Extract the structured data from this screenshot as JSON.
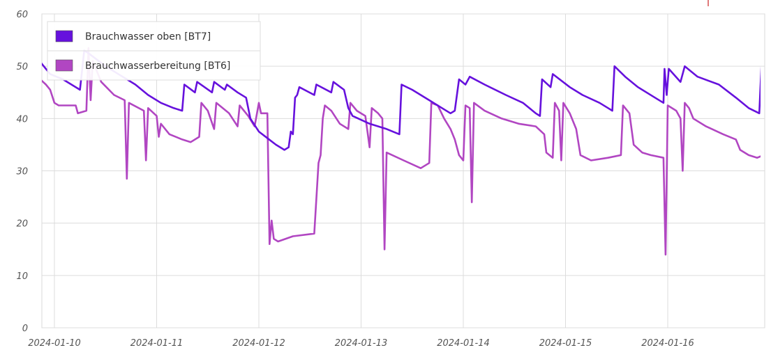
{
  "chart_data": {
    "type": "line",
    "x_type": "datetime",
    "xlim": [
      "2024-01-09 20:00",
      "2024-01-16 23:00"
    ],
    "ylim": [
      0,
      60
    ],
    "y_ticks": [
      0,
      10,
      20,
      30,
      40,
      50,
      60
    ],
    "x_tick_labels": [
      "2024-01-10",
      "2024-01-11",
      "2024-01-12",
      "2024-01-13",
      "2024-01-14",
      "2024-01-15",
      "2024-01-16"
    ],
    "grid": true,
    "legend_position": "top-left",
    "series": [
      {
        "name": "Brauchwasser oben [BT7]",
        "color": "#6611dd",
        "points": [
          [
            "2024-01-09 20:00",
            51.5
          ],
          [
            "2024-01-09 21:00",
            50.5
          ],
          [
            "2024-01-09 22:00",
            49.5
          ],
          [
            "2024-01-09 23:00",
            48.5
          ],
          [
            "2024-01-10 02:00",
            47.5
          ],
          [
            "2024-01-10 04:00",
            46.5
          ],
          [
            "2024-01-10 06:00",
            45.5
          ],
          [
            "2024-01-10 07:00",
            53.0
          ],
          [
            "2024-01-10 08:00",
            52.5
          ],
          [
            "2024-01-10 12:00",
            50.0
          ],
          [
            "2024-01-10 16:00",
            48.0
          ],
          [
            "2024-01-10 19:00",
            46.5
          ],
          [
            "2024-01-10 22:00",
            44.5
          ],
          [
            "2024-01-11 01:00",
            43.0
          ],
          [
            "2024-01-11 04:00",
            42.0
          ],
          [
            "2024-01-11 06:00",
            41.5
          ],
          [
            "2024-01-11 06:30",
            46.5
          ],
          [
            "2024-01-11 09:00",
            45.0
          ],
          [
            "2024-01-11 09:30",
            47.0
          ],
          [
            "2024-01-11 13:00",
            45.0
          ],
          [
            "2024-01-11 13:30",
            47.0
          ],
          [
            "2024-01-11 16:00",
            45.5
          ],
          [
            "2024-01-11 16:30",
            46.5
          ],
          [
            "2024-01-11 19:00",
            45.0
          ],
          [
            "2024-01-11 21:00",
            44.0
          ],
          [
            "2024-01-11 22:00",
            40.0
          ],
          [
            "2024-01-12 00:00",
            37.5
          ],
          [
            "2024-01-12 04:00",
            35.0
          ],
          [
            "2024-01-12 06:00",
            34.0
          ],
          [
            "2024-01-12 07:00",
            34.5
          ],
          [
            "2024-01-12 07:30",
            37.5
          ],
          [
            "2024-01-12 08:00",
            37.0
          ],
          [
            "2024-01-12 08:30",
            44.0
          ],
          [
            "2024-01-12 09:00",
            44.5
          ],
          [
            "2024-01-12 09:30",
            46.0
          ],
          [
            "2024-01-12 13:00",
            44.5
          ],
          [
            "2024-01-12 13:30",
            46.5
          ],
          [
            "2024-01-12 17:00",
            45.0
          ],
          [
            "2024-01-12 17:30",
            47.0
          ],
          [
            "2024-01-12 20:00",
            45.5
          ],
          [
            "2024-01-12 21:00",
            42.0
          ],
          [
            "2024-01-12 22:00",
            40.5
          ],
          [
            "2024-01-13 02:00",
            39.0
          ],
          [
            "2024-01-13 06:00",
            38.0
          ],
          [
            "2024-01-13 09:00",
            37.0
          ],
          [
            "2024-01-13 09:30",
            46.5
          ],
          [
            "2024-01-13 12:00",
            45.5
          ],
          [
            "2024-01-13 16:00",
            43.5
          ],
          [
            "2024-01-13 19:00",
            42.0
          ],
          [
            "2024-01-13 21:00",
            41.0
          ],
          [
            "2024-01-13 22:00",
            41.5
          ],
          [
            "2024-01-13 23:00",
            47.5
          ],
          [
            "2024-01-14 00:30",
            46.5
          ],
          [
            "2024-01-14 01:30",
            48.0
          ],
          [
            "2024-01-14 05:00",
            46.5
          ],
          [
            "2024-01-14 10:00",
            44.5
          ],
          [
            "2024-01-14 14:00",
            43.0
          ],
          [
            "2024-01-14 17:00",
            41.0
          ],
          [
            "2024-01-14 18:00",
            40.5
          ],
          [
            "2024-01-14 18:30",
            47.5
          ],
          [
            "2024-01-14 20:30",
            46.0
          ],
          [
            "2024-01-14 21:00",
            48.5
          ],
          [
            "2024-01-15 01:00",
            46.0
          ],
          [
            "2024-01-15 04:00",
            44.5
          ],
          [
            "2024-01-15 08:00",
            43.0
          ],
          [
            "2024-01-15 10:00",
            42.0
          ],
          [
            "2024-01-15 11:00",
            41.5
          ],
          [
            "2024-01-15 11:30",
            50.0
          ],
          [
            "2024-01-15 14:00",
            48.0
          ],
          [
            "2024-01-15 17:00",
            46.0
          ],
          [
            "2024-01-15 21:00",
            44.0
          ],
          [
            "2024-01-15 23:00",
            43.0
          ],
          [
            "2024-01-15 23:15",
            49.5
          ],
          [
            "2024-01-15 23:45",
            44.5
          ],
          [
            "2024-01-16 00:15",
            49.5
          ],
          [
            "2024-01-16 03:00",
            47.0
          ],
          [
            "2024-01-16 04:00",
            50.0
          ],
          [
            "2024-01-16 07:00",
            48.0
          ],
          [
            "2024-01-16 12:00",
            46.5
          ],
          [
            "2024-01-16 16:00",
            44.0
          ],
          [
            "2024-01-16 19:00",
            42.0
          ],
          [
            "2024-01-16 21:30",
            41.0
          ],
          [
            "2024-01-16 22:00",
            50.0
          ],
          [
            "2024-01-17 00:00",
            48.0
          ],
          [
            "2024-01-17 03:30",
            45.5
          ],
          [
            "2024-01-17 04:00",
            48.0
          ],
          [
            "2024-01-17 05:00",
            47.5
          ]
        ]
      },
      {
        "name": "Brauchwasserbereitung [BT6]",
        "color": "#b146c2",
        "points": [
          [
            "2024-01-09 20:00",
            48.0
          ],
          [
            "2024-01-09 22:00",
            46.5
          ],
          [
            "2024-01-09 23:00",
            45.5
          ],
          [
            "2024-01-10 00:00",
            43.0
          ],
          [
            "2024-01-10 01:00",
            42.5
          ],
          [
            "2024-01-10 05:00",
            42.5
          ],
          [
            "2024-01-10 05:30",
            41.0
          ],
          [
            "2024-01-10 07:30",
            41.5
          ],
          [
            "2024-01-10 08:00",
            53.5
          ],
          [
            "2024-01-10 08:30",
            43.5
          ],
          [
            "2024-01-10 09:00",
            51.0
          ],
          [
            "2024-01-10 11:00",
            47.0
          ],
          [
            "2024-01-10 14:00",
            44.5
          ],
          [
            "2024-01-10 16:30",
            43.5
          ],
          [
            "2024-01-10 17:00",
            28.5
          ],
          [
            "2024-01-10 17:30",
            43.0
          ],
          [
            "2024-01-10 21:00",
            41.5
          ],
          [
            "2024-01-10 21:30",
            32.0
          ],
          [
            "2024-01-10 22:00",
            42.0
          ],
          [
            "2024-01-11 00:00",
            40.5
          ],
          [
            "2024-01-11 00:30",
            36.5
          ],
          [
            "2024-01-11 01:00",
            39.0
          ],
          [
            "2024-01-11 03:00",
            37.0
          ],
          [
            "2024-01-11 06:00",
            36.0
          ],
          [
            "2024-01-11 08:00",
            35.5
          ],
          [
            "2024-01-11 10:00",
            36.5
          ],
          [
            "2024-01-11 10:30",
            43.0
          ],
          [
            "2024-01-11 12:00",
            41.5
          ],
          [
            "2024-01-11 13:30",
            38.0
          ],
          [
            "2024-01-11 14:00",
            43.0
          ],
          [
            "2024-01-11 17:00",
            41.0
          ],
          [
            "2024-01-11 19:00",
            38.5
          ],
          [
            "2024-01-11 19:30",
            42.5
          ],
          [
            "2024-01-11 21:30",
            40.5
          ],
          [
            "2024-01-11 23:00",
            38.5
          ],
          [
            "2024-01-12 00:00",
            43.0
          ],
          [
            "2024-01-12 00:30",
            41.0
          ],
          [
            "2024-01-12 02:00",
            41.0
          ],
          [
            "2024-01-12 02:30",
            16.0
          ],
          [
            "2024-01-12 03:00",
            20.5
          ],
          [
            "2024-01-12 03:30",
            17.0
          ],
          [
            "2024-01-12 04:30",
            16.5
          ],
          [
            "2024-01-12 08:00",
            17.5
          ],
          [
            "2024-01-12 13:00",
            18.0
          ],
          [
            "2024-01-12 14:00",
            31.5
          ],
          [
            "2024-01-12 14:30",
            33.0
          ],
          [
            "2024-01-12 15:00",
            40.0
          ],
          [
            "2024-01-12 15:30",
            42.5
          ],
          [
            "2024-01-12 17:00",
            41.5
          ],
          [
            "2024-01-12 19:00",
            39.0
          ],
          [
            "2024-01-12 21:00",
            38.0
          ],
          [
            "2024-01-12 21:30",
            43.0
          ],
          [
            "2024-01-12 23:00",
            41.5
          ],
          [
            "2024-01-13 01:00",
            40.5
          ],
          [
            "2024-01-13 02:00",
            34.5
          ],
          [
            "2024-01-13 02:30",
            42.0
          ],
          [
            "2024-01-13 04:00",
            41.0
          ],
          [
            "2024-01-13 05:00",
            40.0
          ],
          [
            "2024-01-13 05:30",
            15.0
          ],
          [
            "2024-01-13 06:00",
            33.5
          ],
          [
            "2024-01-13 10:00",
            32.0
          ],
          [
            "2024-01-13 14:00",
            30.5
          ],
          [
            "2024-01-13 16:00",
            31.5
          ],
          [
            "2024-01-13 16:30",
            43.0
          ],
          [
            "2024-01-13 18:00",
            42.5
          ],
          [
            "2024-01-13 19:30",
            40.0
          ],
          [
            "2024-01-13 21:00",
            38.0
          ],
          [
            "2024-01-13 22:00",
            36.0
          ],
          [
            "2024-01-13 23:00",
            33.0
          ],
          [
            "2024-01-14 00:00",
            32.0
          ],
          [
            "2024-01-14 00:30",
            42.5
          ],
          [
            "2024-01-14 01:30",
            42.0
          ],
          [
            "2024-01-14 02:00",
            24.0
          ],
          [
            "2024-01-14 02:30",
            43.0
          ],
          [
            "2024-01-14 05:00",
            41.5
          ],
          [
            "2024-01-14 09:00",
            40.0
          ],
          [
            "2024-01-14 13:00",
            39.0
          ],
          [
            "2024-01-14 17:00",
            38.5
          ],
          [
            "2024-01-14 19:00",
            37.0
          ],
          [
            "2024-01-14 19:30",
            33.5
          ],
          [
            "2024-01-14 21:00",
            32.5
          ],
          [
            "2024-01-14 21:30",
            43.0
          ],
          [
            "2024-01-14 22:30",
            41.5
          ],
          [
            "2024-01-14 23:00",
            32.0
          ],
          [
            "2024-01-14 23:30",
            43.0
          ],
          [
            "2024-01-15 01:00",
            41.0
          ],
          [
            "2024-01-15 02:30",
            38.0
          ],
          [
            "2024-01-15 03:30",
            33.0
          ],
          [
            "2024-01-15 06:00",
            32.0
          ],
          [
            "2024-01-15 10:00",
            32.5
          ],
          [
            "2024-01-15 13:00",
            33.0
          ],
          [
            "2024-01-15 13:30",
            42.5
          ],
          [
            "2024-01-15 15:00",
            41.0
          ],
          [
            "2024-01-15 16:00",
            35.0
          ],
          [
            "2024-01-15 18:00",
            33.5
          ],
          [
            "2024-01-15 20:00",
            33.0
          ],
          [
            "2024-01-15 23:00",
            32.5
          ],
          [
            "2024-01-15 23:30",
            14.0
          ],
          [
            "2024-01-16 00:00",
            42.5
          ],
          [
            "2024-01-16 02:00",
            41.5
          ],
          [
            "2024-01-16 03:00",
            40.0
          ],
          [
            "2024-01-16 03:30",
            30.0
          ],
          [
            "2024-01-16 04:00",
            43.0
          ],
          [
            "2024-01-16 05:00",
            42.0
          ],
          [
            "2024-01-16 06:00",
            40.0
          ],
          [
            "2024-01-16 09:00",
            38.5
          ],
          [
            "2024-01-16 13:00",
            37.0
          ],
          [
            "2024-01-16 16:00",
            36.0
          ],
          [
            "2024-01-16 17:00",
            34.0
          ],
          [
            "2024-01-16 19:00",
            33.0
          ],
          [
            "2024-01-16 21:00",
            32.5
          ],
          [
            "2024-01-16 22:30",
            33.0
          ],
          [
            "2024-01-16 23:00",
            42.5
          ],
          [
            "2024-01-17 00:30",
            42.5
          ],
          [
            "2024-01-17 01:30",
            40.0
          ],
          [
            "2024-01-17 02:00",
            36.0
          ],
          [
            "2024-01-17 03:00",
            35.0
          ],
          [
            "2024-01-17 03:30",
            30.0
          ],
          [
            "2024-01-17 04:00",
            43.0
          ],
          [
            "2024-01-17 05:00",
            42.5
          ]
        ]
      }
    ]
  }
}
